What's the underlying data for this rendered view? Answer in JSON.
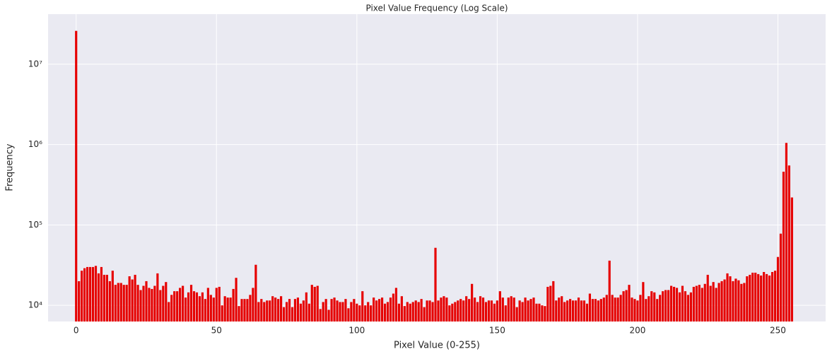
{
  "chart_data": {
    "type": "bar",
    "title": "Pixel Value Frequency (Log Scale)",
    "x_label": "Pixel Value (0-255)",
    "y_label": "Frequency",
    "color": "#e60000",
    "log_y": true,
    "grid": true,
    "xlim": [
      -10,
      267
    ],
    "ylim": [
      6300,
      42000000
    ],
    "xticks": [
      0,
      50,
      100,
      150,
      200,
      250
    ],
    "yticks": [
      {
        "value": 10000,
        "label": "10⁴"
      },
      {
        "value": 100000,
        "label": "10⁵"
      },
      {
        "value": 1000000,
        "label": "10⁶"
      },
      {
        "value": 10000000,
        "label": "10⁷"
      }
    ],
    "x": [
      0,
      1,
      2,
      3,
      4,
      5,
      6,
      7,
      8,
      9,
      10,
      11,
      12,
      13,
      14,
      15,
      16,
      17,
      18,
      19,
      20,
      21,
      22,
      23,
      24,
      25,
      26,
      27,
      28,
      29,
      30,
      31,
      32,
      33,
      34,
      35,
      36,
      37,
      38,
      39,
      40,
      41,
      42,
      43,
      44,
      45,
      46,
      47,
      48,
      49,
      50,
      51,
      52,
      53,
      54,
      55,
      56,
      57,
      58,
      59,
      60,
      61,
      62,
      63,
      64,
      65,
      66,
      67,
      68,
      69,
      70,
      71,
      72,
      73,
      74,
      75,
      76,
      77,
      78,
      79,
      80,
      81,
      82,
      83,
      84,
      85,
      86,
      87,
      88,
      89,
      90,
      91,
      92,
      93,
      94,
      95,
      96,
      97,
      98,
      99,
      100,
      101,
      102,
      103,
      104,
      105,
      106,
      107,
      108,
      109,
      110,
      111,
      112,
      113,
      114,
      115,
      116,
      117,
      118,
      119,
      120,
      121,
      122,
      123,
      124,
      125,
      126,
      127,
      128,
      129,
      130,
      131,
      132,
      133,
      134,
      135,
      136,
      137,
      138,
      139,
      140,
      141,
      142,
      143,
      144,
      145,
      146,
      147,
      148,
      149,
      150,
      151,
      152,
      153,
      154,
      155,
      156,
      157,
      158,
      159,
      160,
      161,
      162,
      163,
      164,
      165,
      166,
      167,
      168,
      169,
      170,
      171,
      172,
      173,
      174,
      175,
      176,
      177,
      178,
      179,
      180,
      181,
      182,
      183,
      184,
      185,
      186,
      187,
      188,
      189,
      190,
      191,
      192,
      193,
      194,
      195,
      196,
      197,
      198,
      199,
      200,
      201,
      202,
      203,
      204,
      205,
      206,
      207,
      208,
      209,
      210,
      211,
      212,
      213,
      214,
      215,
      216,
      217,
      218,
      219,
      220,
      221,
      222,
      223,
      224,
      225,
      226,
      227,
      228,
      229,
      230,
      231,
      232,
      233,
      234,
      235,
      236,
      237,
      238,
      239,
      240,
      241,
      242,
      243,
      244,
      245,
      246,
      247,
      248,
      249,
      250,
      251,
      252,
      253,
      254,
      255
    ],
    "values": [
      26000000,
      20000,
      27000,
      29000,
      30000,
      30000,
      30000,
      31000,
      25000,
      30000,
      24000,
      24000,
      20000,
      27000,
      18000,
      19000,
      19000,
      18000,
      18000,
      23000,
      21000,
      24000,
      18000,
      15500,
      17500,
      20000,
      16500,
      16000,
      17500,
      25000,
      15500,
      17500,
      19500,
      11000,
      13500,
      15000,
      15000,
      16500,
      17500,
      12500,
      14500,
      18000,
      15000,
      14500,
      13000,
      14500,
      12000,
      16500,
      13500,
      12500,
      16500,
      17000,
      10000,
      13000,
      12500,
      12500,
      16000,
      22000,
      9800,
      12000,
      12000,
      12000,
      13500,
      16500,
      32000,
      11000,
      12000,
      11000,
      11500,
      11500,
      13000,
      12500,
      12000,
      13000,
      9500,
      11000,
      12000,
      9500,
      12000,
      12500,
      10500,
      11500,
      14500,
      10500,
      18000,
      17000,
      17500,
      9000,
      11000,
      12000,
      8800,
      12000,
      12500,
      11500,
      11000,
      11000,
      12000,
      9200,
      11000,
      12000,
      10500,
      10000,
      15000,
      10000,
      11000,
      10000,
      12500,
      11500,
      12000,
      12500,
      10500,
      11000,
      12500,
      14000,
      16500,
      10500,
      13000,
      9800,
      11000,
      10500,
      11000,
      11500,
      11000,
      12000,
      9500,
      11500,
      11500,
      11000,
      52000,
      11500,
      12500,
      13000,
      12500,
      10000,
      10500,
      11000,
      11500,
      12000,
      11500,
      13000,
      12000,
      18500,
      12500,
      11000,
      13000,
      12500,
      11000,
      11500,
      11500,
      10500,
      11500,
      15000,
      12500,
      10000,
      12500,
      13000,
      12500,
      9500,
      11500,
      11000,
      12500,
      11500,
      12000,
      12500,
      10500,
      10500,
      10000,
      9800,
      17000,
      17500,
      20000,
      11500,
      12500,
      13000,
      11000,
      11500,
      12000,
      11500,
      11500,
      12500,
      11500,
      11500,
      10500,
      14000,
      12000,
      12000,
      11500,
      12000,
      12500,
      13500,
      36000,
      13500,
      12500,
      12500,
      13500,
      15000,
      15500,
      18000,
      12500,
      12000,
      11500,
      13500,
      19500,
      12000,
      13000,
      15000,
      14500,
      12000,
      13500,
      15000,
      15500,
      15500,
      17500,
      17000,
      16500,
      14500,
      17500,
      15000,
      13500,
      14500,
      17000,
      17500,
      18000,
      16500,
      18500,
      24000,
      17500,
      19500,
      16500,
      19000,
      20000,
      21000,
      25000,
      23000,
      20000,
      21500,
      20500,
      18500,
      19000,
      23000,
      24000,
      25500,
      25500,
      24500,
      23500,
      26000,
      24500,
      23500,
      26000,
      27000,
      40000,
      78000,
      460000,
      1050000,
      550000,
      220000
    ]
  }
}
